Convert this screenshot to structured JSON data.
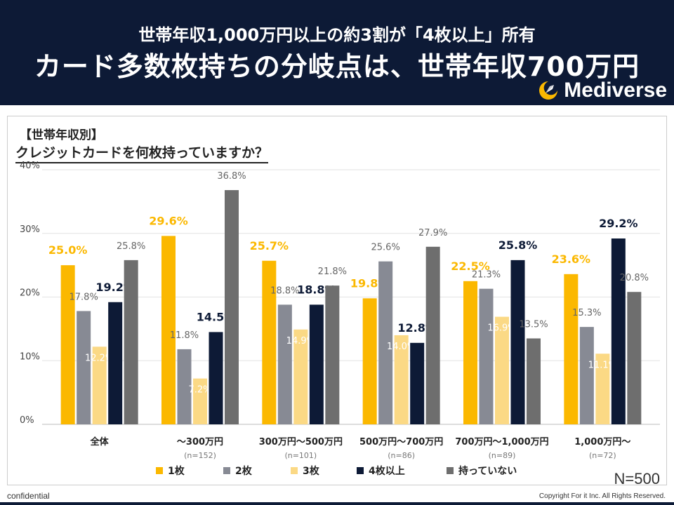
{
  "header": {
    "subtitle": "世帯年収1,000万円以上の約3割が「4枚以上」所有",
    "title": "カード多数枚持ちの分岐点は、世帯年収700万円",
    "logo_text": "Mediverse"
  },
  "section_label": "【世帯年収別】",
  "question": "クレジットカードを何枚持っていますか？",
  "sample_size": "N=500",
  "footer": {
    "confidential": "confidential",
    "copyright": "Copyright For it Inc. All Rights Reserved."
  },
  "colors": {
    "header_bg": "#0d1a36",
    "s1": "#fbb800",
    "s2": "#878a94",
    "s3": "#fbd985",
    "s4": "#0d1a36",
    "s5": "#6e6e6e"
  },
  "chart_data": {
    "type": "bar",
    "title": "クレジットカードを何枚持っていますか？",
    "categories": [
      "全体",
      "～300万円",
      "300万円～500万円",
      "500万円～700万円",
      "700万円～1,000万円",
      "1,000万円～"
    ],
    "category_sub": [
      "",
      "(n=152)",
      "(n=101)",
      "(n=86)",
      "(n=89)",
      "(n=72)"
    ],
    "y_ticks": [
      "0%",
      "10%",
      "20%",
      "30%",
      "40%"
    ],
    "ylim": [
      0,
      40
    ],
    "grid": true,
    "legend_position": "bottom",
    "series": [
      {
        "name": "1枚",
        "values": [
          25.0,
          29.6,
          25.7,
          19.8,
          22.5,
          23.6
        ],
        "labels": [
          "25.0%",
          "29.6%",
          "25.7%",
          "19.8%",
          "22.5%",
          "23.6%"
        ]
      },
      {
        "name": "2枚",
        "values": [
          17.8,
          11.8,
          18.8,
          25.6,
          21.3,
          15.3
        ],
        "labels": [
          "17.8%",
          "11.8%",
          "18.8%",
          "25.6%",
          "21.3%",
          "15.3%"
        ]
      },
      {
        "name": "3枚",
        "values": [
          12.2,
          7.2,
          14.9,
          14.0,
          16.9,
          11.1
        ],
        "labels": [
          "12.2%",
          "7.2%",
          "14.9%",
          "14.0%",
          "16.9%",
          "11.1%"
        ]
      },
      {
        "name": "4枚以上",
        "values": [
          19.2,
          14.5,
          18.8,
          12.8,
          25.8,
          29.2
        ],
        "labels": [
          "19.2%",
          "14.5%",
          "18.8%",
          "12.8%",
          "25.8%",
          "29.2%"
        ]
      },
      {
        "name": "持っていない",
        "values": [
          25.8,
          36.8,
          21.8,
          27.9,
          13.5,
          20.8
        ],
        "labels": [
          "25.8%",
          "36.8%",
          "21.8%",
          "27.9%",
          "13.5%",
          "20.8%"
        ]
      }
    ]
  }
}
